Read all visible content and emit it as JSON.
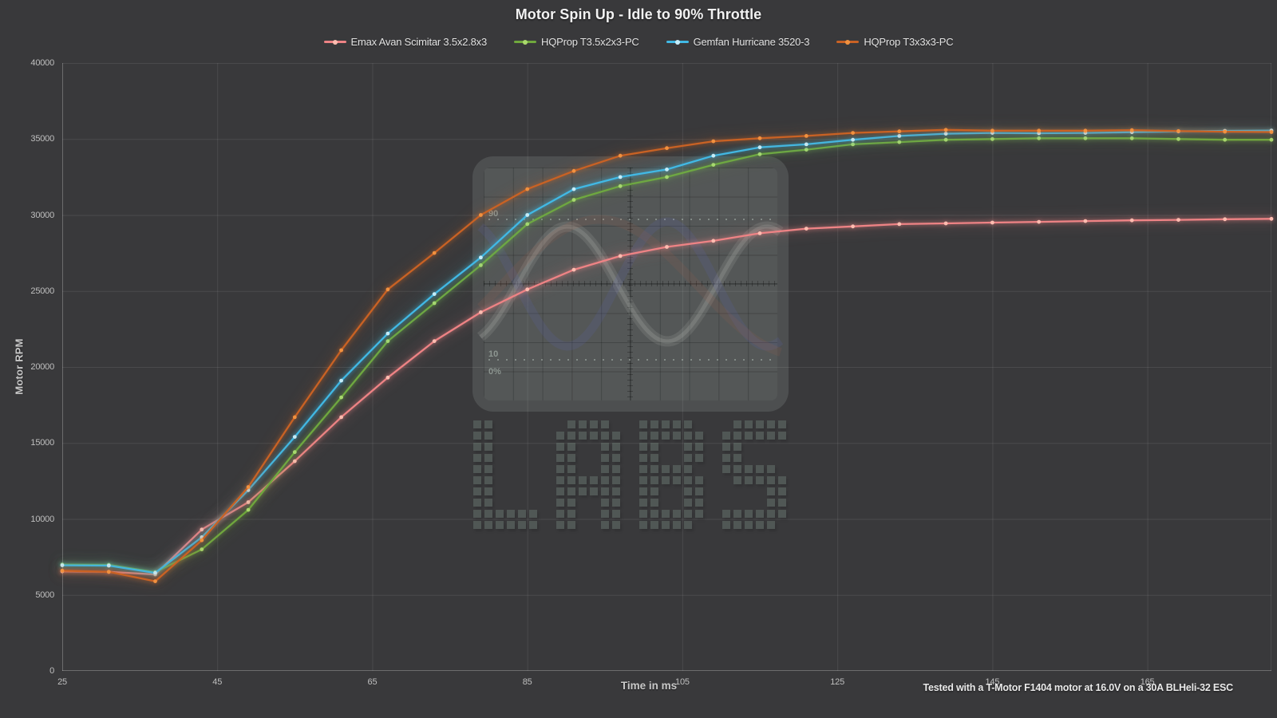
{
  "title": "Motor Spin Up - Idle to 90% Throttle",
  "footnote": "Tested with a T-Motor F1404 motor at 16.0V on a 30A BLHeli-32 ESC",
  "axes": {
    "x_title": "Time in ms",
    "y_title": "Motor RPM"
  },
  "watermark": {
    "text": "LABS",
    "scope_labels": {
      "p90": "90",
      "p10": "10",
      "p0": "0%"
    }
  },
  "colors": {
    "background": "#39393b",
    "gridline": "rgba(255,255,255,0.09)",
    "axis_line": "rgba(255,255,255,0.26)",
    "tick_text": "#bfbfbf"
  },
  "chart_data": {
    "type": "line",
    "title": "Motor Spin Up - Idle to 90% Throttle",
    "xlabel": "Time in ms",
    "ylabel": "Motor RPM",
    "xlim": [
      25,
      181
    ],
    "ylim": [
      0,
      40000
    ],
    "x_ticks": [
      25,
      45,
      65,
      85,
      105,
      125,
      145,
      165
    ],
    "y_tick_step": 5000,
    "grid": true,
    "legend_position": "top-center",
    "x": [
      25,
      31,
      37,
      43,
      49,
      55,
      61,
      67,
      73,
      79,
      85,
      91,
      97,
      103,
      109,
      115,
      121,
      127,
      133,
      139,
      145,
      151,
      157,
      163,
      169,
      175,
      181
    ],
    "series": [
      {
        "name": "Emax Avan Scimitar 3.5x2.8x3",
        "color": "#ee8385",
        "marker_color": "#ffbcb0",
        "values": [
          6550,
          6520,
          6350,
          9300,
          11100,
          13800,
          16700,
          19300,
          21700,
          23600,
          25100,
          26400,
          27300,
          27900,
          28300,
          28800,
          29100,
          29250,
          29400,
          29450,
          29500,
          29550,
          29600,
          29650,
          29680,
          29720,
          29750
        ]
      },
      {
        "name": "HQProp T3.5x2x3-PC",
        "color": "#70a83d",
        "marker_color": "#aad96c",
        "values": [
          7000,
          6980,
          6500,
          8000,
          10600,
          14400,
          18000,
          21700,
          24200,
          26700,
          29400,
          31000,
          31900,
          32500,
          33300,
          34000,
          34300,
          34650,
          34800,
          34950,
          35000,
          35050,
          35050,
          35050,
          35000,
          34950,
          34950
        ]
      },
      {
        "name": "Gemfan Hurricane 3520-3",
        "color": "#41b9e5",
        "marker_color": "#c5edf9",
        "values": [
          6950,
          6930,
          6450,
          8800,
          11900,
          15400,
          19100,
          22200,
          24800,
          27200,
          30000,
          31700,
          32500,
          33000,
          33900,
          34450,
          34650,
          34950,
          35200,
          35350,
          35400,
          35380,
          35400,
          35450,
          35500,
          35540,
          35560
        ]
      },
      {
        "name": "HQProp T3x3x3-PC",
        "color": "#c96224",
        "marker_color": "#f1913f",
        "values": [
          6600,
          6520,
          5900,
          8600,
          12100,
          16700,
          21100,
          25100,
          27500,
          30000,
          31700,
          32900,
          33900,
          34400,
          34850,
          35050,
          35200,
          35400,
          35500,
          35600,
          35550,
          35550,
          35550,
          35580,
          35520,
          35480,
          35460
        ]
      }
    ]
  }
}
